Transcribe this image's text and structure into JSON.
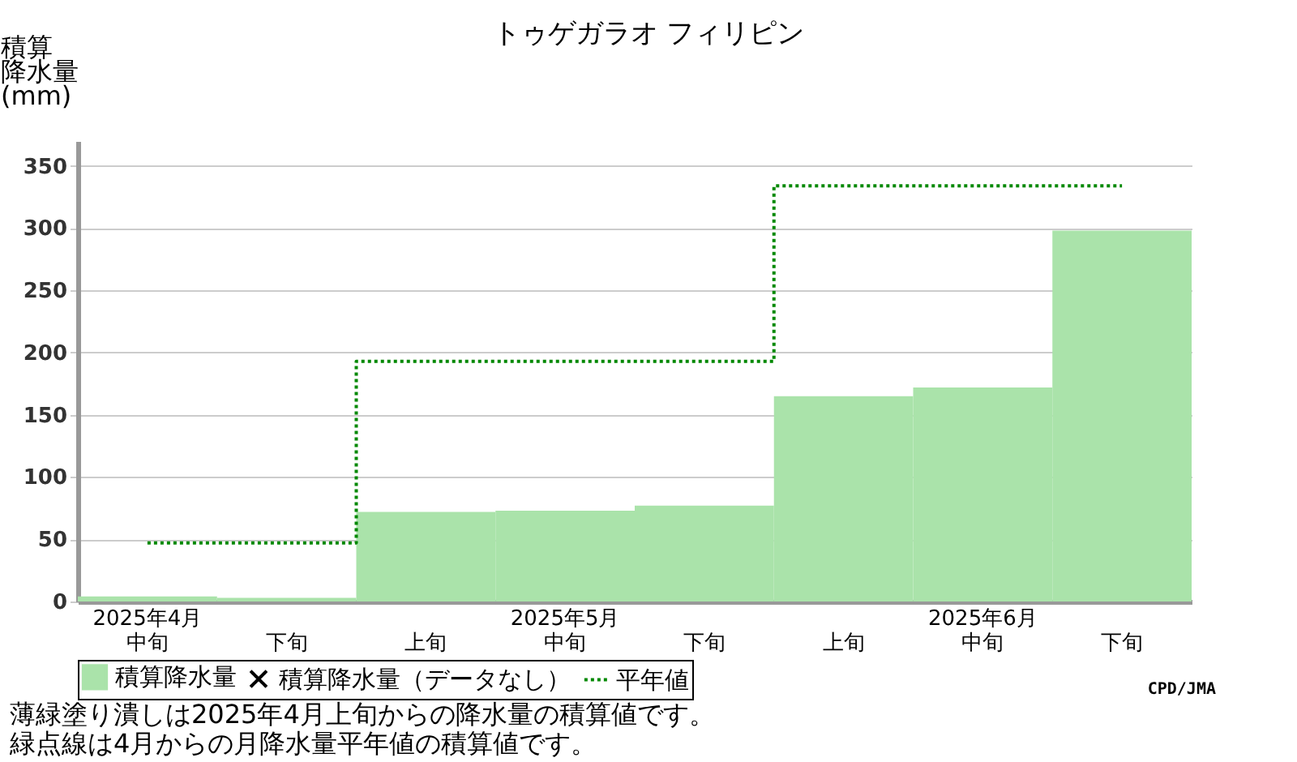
{
  "chart_data": {
    "type": "bar",
    "title": "トゥゲガラオ フィリピン",
    "ylabel": "積算降水量(mm)",
    "categories": [
      "2025年4月中旬",
      "下旬",
      "上旬",
      "2025年5月中旬",
      "下旬",
      "上旬",
      "2025年6月中旬",
      "下旬"
    ],
    "series": [
      {
        "name": "積算降水量",
        "color": "#aae3aa",
        "values": [
          4,
          3,
          72,
          73,
          77,
          165,
          172,
          298
        ]
      },
      {
        "name": "積算降水量（データなし）",
        "type": "scatter",
        "marker": "cross",
        "color": "#000000",
        "values": [
          null,
          null,
          null,
          null,
          null,
          null,
          null,
          null
        ]
      },
      {
        "name": "平年値",
        "type": "step",
        "line_style": "dotted",
        "color": "#008800",
        "values": [
          47,
          47,
          193,
          193,
          193,
          334,
          334,
          334
        ]
      }
    ],
    "ylim": [
      0,
      370
    ],
    "yticks": [
      0,
      50,
      100,
      150,
      200,
      250,
      300,
      350
    ],
    "grid": "y",
    "legend": "bottom",
    "annotations": [
      "薄緑塗り潰しは2025年4月上旬からの降水量の積算値です。",
      "緑点線は4月からの月降水量平年値の積算値です。",
      "CPD/JMA"
    ]
  }
}
